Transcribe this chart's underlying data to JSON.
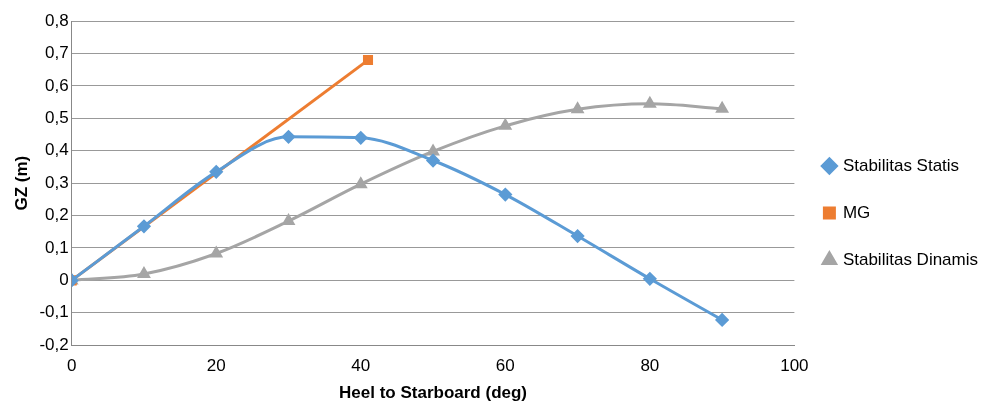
{
  "chart_data": {
    "type": "line",
    "xlabel": "Heel to Starboard (deg)",
    "ylabel": "GZ (m)",
    "xlim": [
      0,
      100
    ],
    "xticks": [
      0,
      20,
      40,
      60,
      80,
      100
    ],
    "ylim": [
      -0.2,
      0.8
    ],
    "yticks": [
      {
        "value": -0.2,
        "label": "-0,2"
      },
      {
        "value": -0.1,
        "label": "-0,1"
      },
      {
        "value": 0,
        "label": "0"
      },
      {
        "value": 0.1,
        "label": "0,1"
      },
      {
        "value": 0.2,
        "label": "0,2"
      },
      {
        "value": 0.3,
        "label": "0,3"
      },
      {
        "value": 0.4,
        "label": "0,4"
      },
      {
        "value": 0.5,
        "label": "0,5"
      },
      {
        "value": 0.6,
        "label": "0,6"
      },
      {
        "value": 0.7,
        "label": "0,7"
      },
      {
        "value": 0.8,
        "label": "0,8"
      }
    ],
    "grid": "y",
    "legend": "right",
    "series": [
      {
        "name": "Stabilitas Statis",
        "color": "#5b9bd5",
        "marker": "diamond",
        "x": [
          0,
          10,
          20,
          30,
          40,
          50,
          60,
          70,
          80,
          90
        ],
        "values": [
          0,
          0.167,
          0.335,
          0.443,
          0.44,
          0.37,
          0.265,
          0.137,
          0.005,
          -0.122
        ]
      },
      {
        "name": "MG",
        "color": "#ed7d31",
        "marker": "square",
        "x": [
          0,
          41
        ],
        "values": [
          0,
          0.68
        ]
      },
      {
        "name": "Stabilitas Dinamis",
        "color": "#a5a5a5",
        "marker": "triangle",
        "x": [
          0,
          10,
          20,
          30,
          40,
          50,
          60,
          70,
          80,
          90
        ],
        "values": [
          0,
          0.02,
          0.083,
          0.183,
          0.297,
          0.398,
          0.477,
          0.528,
          0.545,
          0.53
        ]
      }
    ]
  }
}
